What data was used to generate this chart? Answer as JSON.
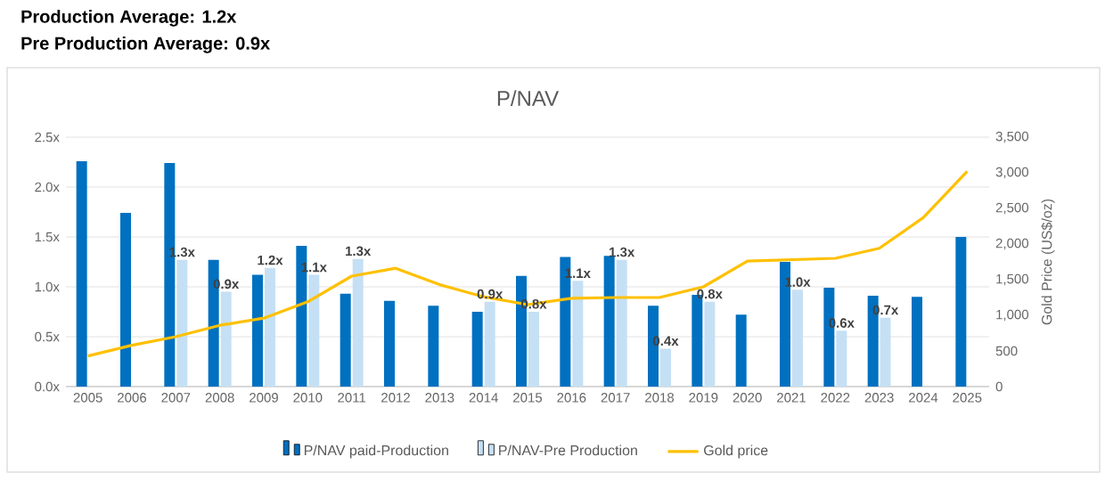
{
  "chart_data": {
    "type": "bar",
    "title": "P/NAV",
    "annotations": [
      "Production Average: 1.2x",
      "Pre Production Average: 0.9x"
    ],
    "categories": [
      "2005",
      "2006",
      "2007",
      "2008",
      "2009",
      "2010",
      "2011",
      "2012",
      "2013",
      "2014",
      "2015",
      "2016",
      "2017",
      "2018",
      "2019",
      "2020",
      "2021",
      "2022",
      "2023",
      "2024",
      "2025"
    ],
    "series": [
      {
        "name": "P/NAV paid-Production",
        "color": "#0070c0",
        "values": [
          2.26,
          1.74,
          2.24,
          1.27,
          1.12,
          1.41,
          0.93,
          0.86,
          0.81,
          0.75,
          1.11,
          1.3,
          1.31,
          0.81,
          0.92,
          0.72,
          1.25,
          0.99,
          0.91,
          0.9,
          1.5
        ]
      },
      {
        "name": "P/NAV-Pre Production",
        "color": "#c5e0f4",
        "values": [
          null,
          null,
          1.27,
          0.95,
          1.19,
          1.12,
          1.28,
          null,
          null,
          0.85,
          0.75,
          1.06,
          1.27,
          0.38,
          0.85,
          null,
          0.97,
          0.56,
          0.69,
          null,
          null
        ],
        "value_labels": [
          null,
          null,
          "1.3x",
          "0.9x",
          "1.2x",
          "1.1x",
          "1.3x",
          null,
          null,
          "0.9x",
          "0.8x",
          "1.1x",
          "1.3x",
          "0.4x",
          "0.8x",
          null,
          "1.0x",
          "0.6x",
          "0.7x",
          null,
          null
        ]
      },
      {
        "name": "Gold price",
        "type": "line",
        "axis": "y2",
        "color": "#ffc000",
        "values": [
          430,
          580,
          700,
          860,
          960,
          1190,
          1550,
          1660,
          1430,
          1260,
          1150,
          1240,
          1250,
          1250,
          1400,
          1760,
          1780,
          1800,
          1940,
          2370,
          3020
        ]
      }
    ],
    "ylim": [
      0,
      2.5
    ],
    "yticks": [
      {
        "value": 0,
        "label": "0.0x"
      },
      {
        "value": 0.5,
        "label": "0.5x"
      },
      {
        "value": 1.0,
        "label": "1.0x"
      },
      {
        "value": 1.5,
        "label": "1.5x"
      },
      {
        "value": 2.0,
        "label": "2.0x"
      },
      {
        "value": 2.5,
        "label": "2.5x"
      }
    ],
    "y2lim": [
      0,
      3500
    ],
    "y2ticks": [
      {
        "value": 0,
        "label": "0"
      },
      {
        "value": 500,
        "label": "500"
      },
      {
        "value": 1000,
        "label": "1,000"
      },
      {
        "value": 1500,
        "label": "1,500"
      },
      {
        "value": 2000,
        "label": "2,000"
      },
      {
        "value": 2500,
        "label": "2,500"
      },
      {
        "value": 3000,
        "label": "3,000"
      },
      {
        "value": 3500,
        "label": "3,500"
      }
    ],
    "y2label": "Gold Price (US$/oz)",
    "grid": "y",
    "legend": "bottom"
  }
}
